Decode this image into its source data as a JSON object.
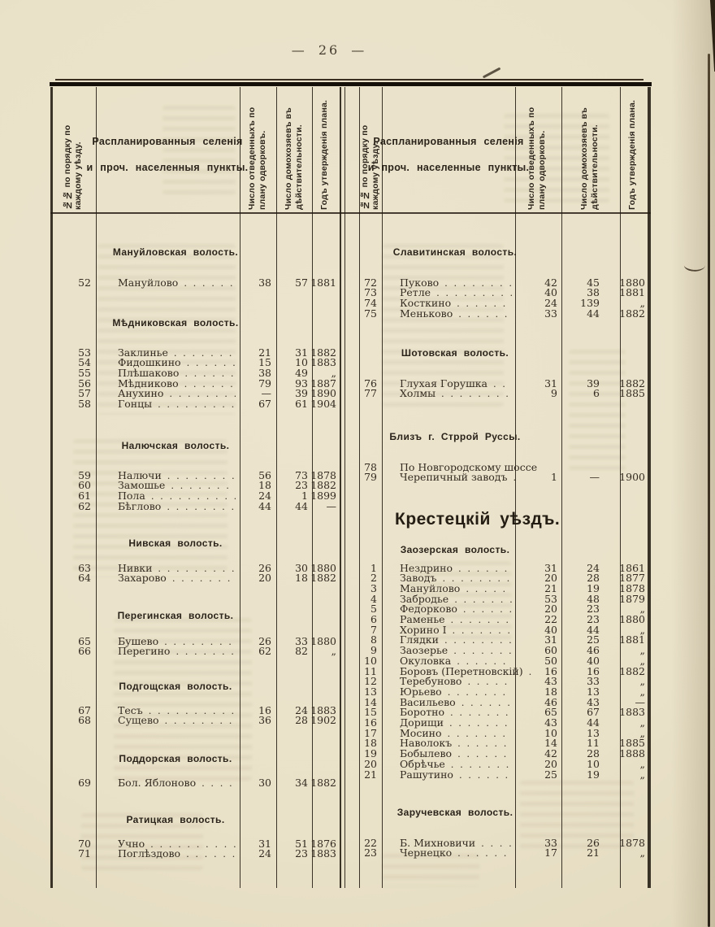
{
  "page": {
    "number_display": "— 26 —"
  },
  "headers": {
    "left": {
      "num": "№№ по порядку по\nкаждому уѣзду.",
      "planned": "Распланированныя селенія\nи проч. населенныя пункты.",
      "plots": "Число отведенныхъ по\nплану одворковъ.",
      "households": "Число домохозяевъ въ\nдѣйствительности.",
      "year": "Годъ утвержденія плана."
    },
    "right": {
      "num": "№№ по порядку по\nкаждому уѣзду.",
      "planned": "Распланированныя селенія\nи проч. населенные пункты.",
      "plots": "Число отведенныхъ по\nплану одворковъ.",
      "households": "Число домохозяевъ въ\nдѣйствительности.",
      "year": "Годъ утвержденія плана."
    }
  },
  "left_table": {
    "sections": [
      {
        "title": "Мануйловская волость.",
        "rows": [
          {
            "num": "52",
            "name": "Мануйлово",
            "dots": true,
            "plots": "38",
            "households": "57",
            "year": "1881"
          }
        ]
      },
      {
        "title": "Мѣдниковская волость.",
        "rows": [
          {
            "num": "53",
            "name": "Заклинье",
            "dots": true,
            "plots": "21",
            "households": "31",
            "year": "1882"
          },
          {
            "num": "54",
            "name": "Фидошкино",
            "dots": true,
            "plots": "15",
            "households": "10",
            "year": "1883"
          },
          {
            "num": "55",
            "name": "Плѣшаково",
            "dots": true,
            "plots": "38",
            "households": "49",
            "year": "„"
          },
          {
            "num": "56",
            "name": "Мѣдниково",
            "dots": true,
            "plots": "79",
            "households": "93",
            "year": "1887"
          },
          {
            "num": "57",
            "name": "Анухино",
            "dots": true,
            "plots": "—",
            "households": "39",
            "year": "1890"
          },
          {
            "num": "58",
            "name": "Гонцы",
            "dots": true,
            "plots": "67",
            "households": "61",
            "year": "1904"
          }
        ]
      },
      {
        "title": "Налючская волость.",
        "rows": [
          {
            "num": "59",
            "name": "Налючи",
            "dots": true,
            "plots": "56",
            "households": "73",
            "year": "1878"
          },
          {
            "num": "60",
            "name": "Замошье",
            "dots": true,
            "plots": "18",
            "households": "23",
            "year": "1882"
          },
          {
            "num": "61",
            "name": "Пола",
            "dots": true,
            "plots": "24",
            "households": "1",
            "year": "1899"
          },
          {
            "num": "62",
            "name": "Бѣглово",
            "dots": true,
            "plots": "44",
            "households": "44",
            "year": "—"
          }
        ]
      },
      {
        "title": "Нивская волость.",
        "rows": [
          {
            "num": "63",
            "name": "Нивки",
            "dots": true,
            "plots": "26",
            "households": "30",
            "year": "1880"
          },
          {
            "num": "64",
            "name": "Захарово",
            "dots": true,
            "plots": "20",
            "households": "18",
            "year": "1882"
          }
        ]
      },
      {
        "title": "Перегинская волость.",
        "rows": [
          {
            "num": "65",
            "name": "Бушево",
            "dots": true,
            "plots": "26",
            "households": "33",
            "year": "1880"
          },
          {
            "num": "66",
            "name": "Перегино",
            "dots": true,
            "plots": "62",
            "households": "82",
            "year": "„"
          }
        ]
      },
      {
        "title": "Подгощская волость.",
        "rows": [
          {
            "num": "67",
            "name": "Тесъ",
            "dots": true,
            "plots": "16",
            "households": "24",
            "year": "1883"
          },
          {
            "num": "68",
            "name": "Сущево",
            "dots": true,
            "plots": "36",
            "households": "28",
            "year": "1902"
          }
        ]
      },
      {
        "title": "Поддорская волость.",
        "rows": [
          {
            "num": "69",
            "name": "Бол. Яблоново",
            "dots": true,
            "plots": "30",
            "households": "34",
            "year": "1882"
          }
        ]
      },
      {
        "title": "Ратицкая волость.",
        "rows": [
          {
            "num": "70",
            "name": "Учно",
            "dots": true,
            "plots": "31",
            "households": "51",
            "year": "1876"
          },
          {
            "num": "71",
            "name": "Поглѣздово",
            "dots": true,
            "plots": "24",
            "households": "23",
            "year": "1883"
          }
        ]
      }
    ]
  },
  "right_table": {
    "uezd_header": "Крестецкій уѣздъ.",
    "sections": [
      {
        "title": "Славитинская волость.",
        "rows": [
          {
            "num": "72",
            "name": "Пуково",
            "dots": true,
            "plots": "42",
            "households": "45",
            "year": "1880"
          },
          {
            "num": "73",
            "name": "Ретле",
            "dots": true,
            "plots": "40",
            "households": "38",
            "year": "1881"
          },
          {
            "num": "74",
            "name": "Косткино",
            "dots": true,
            "plots": "24",
            "households": "139",
            "year": "„"
          },
          {
            "num": "75",
            "name": "Меньково",
            "dots": true,
            "plots": "33",
            "households": "44",
            "year": "1882"
          }
        ]
      },
      {
        "title": "Шотовская волость.",
        "rows": [
          {
            "num": "76",
            "name": "Глухая Горушка",
            "dots": true,
            "plots": "31",
            "households": "39",
            "year": "1882"
          },
          {
            "num": "77",
            "name": "Холмы",
            "dots": true,
            "plots": "9",
            "households": "6",
            "year": "1885"
          }
        ]
      },
      {
        "title": "Близъ г. Стррой Руссы.",
        "rows": [
          {
            "num": "78",
            "name": "По Новгородскому шоссе",
            "dots": false,
            "plots": "",
            "households": "",
            "year": ""
          },
          {
            "num": "79",
            "name": "Черепичный заводъ",
            "dots": true,
            "plots": "1",
            "households": "—",
            "year": "1900"
          }
        ]
      },
      {
        "title": "Заозерская волость.",
        "rows": [
          {
            "num": "1",
            "name": "Нездрино",
            "dots": true,
            "plots": "31",
            "households": "24",
            "year": "1861"
          },
          {
            "num": "2",
            "name": "Заводъ",
            "dots": true,
            "plots": "20",
            "households": "28",
            "year": "1877"
          },
          {
            "num": "3",
            "name": "Мануйлово",
            "dots": true,
            "plots": "21",
            "households": "19",
            "year": "1878"
          },
          {
            "num": "4",
            "name": "Забродье",
            "dots": true,
            "plots": "53",
            "households": "48",
            "year": "1879"
          },
          {
            "num": "5",
            "name": "Федорково",
            "dots": true,
            "plots": "20",
            "households": "23",
            "year": "„"
          },
          {
            "num": "6",
            "name": "Раменье",
            "dots": true,
            "plots": "22",
            "households": "23",
            "year": "1880"
          },
          {
            "num": "7",
            "name": "Хорино I",
            "dots": true,
            "plots": "40",
            "households": "44",
            "year": "„"
          },
          {
            "num": "8",
            "name": "Глядки",
            "dots": true,
            "plots": "31",
            "households": "25",
            "year": "1881"
          },
          {
            "num": "9",
            "name": "Заозерье",
            "dots": true,
            "plots": "60",
            "households": "46",
            "year": "„"
          },
          {
            "num": "10",
            "name": "Окуловка",
            "dots": true,
            "plots": "50",
            "households": "40",
            "year": "„"
          },
          {
            "num": "11",
            "name": "Боровъ (Перетновскій)",
            "dots": true,
            "plots": "16",
            "households": "16",
            "year": "1882"
          },
          {
            "num": "12",
            "name": "Теребуново",
            "dots": true,
            "plots": "43",
            "households": "33",
            "year": "„"
          },
          {
            "num": "13",
            "name": "Юрьево",
            "dots": true,
            "plots": "18",
            "households": "13",
            "year": "„"
          },
          {
            "num": "14",
            "name": "Васильево",
            "dots": true,
            "plots": "46",
            "households": "43",
            "year": "—"
          },
          {
            "num": "15",
            "name": "Боротно",
            "dots": true,
            "plots": "65",
            "households": "67",
            "year": "1883"
          },
          {
            "num": "16",
            "name": "Дорищи",
            "dots": true,
            "plots": "43",
            "households": "44",
            "year": "„"
          },
          {
            "num": "17",
            "name": "Мосино",
            "dots": true,
            "plots": "10",
            "households": "13",
            "year": "„"
          },
          {
            "num": "18",
            "name": "Наволокъ",
            "dots": true,
            "plots": "14",
            "households": "11",
            "year": "1885"
          },
          {
            "num": "19",
            "name": "Бобылево",
            "dots": true,
            "plots": "42",
            "households": "28",
            "year": "1888"
          },
          {
            "num": "20",
            "name": "Обрѣчье",
            "dots": true,
            "plots": "20",
            "households": "10",
            "year": "„"
          },
          {
            "num": "21",
            "name": "Рашутино",
            "dots": true,
            "plots": "25",
            "households": "19",
            "year": "„"
          }
        ]
      },
      {
        "title": "Заручевская волость.",
        "rows": [
          {
            "num": "22",
            "name": "Б. Михновичи",
            "dots": true,
            "plots": "33",
            "households": "26",
            "year": "1878"
          },
          {
            "num": "23",
            "name": "Чернецко",
            "dots": true,
            "plots": "17",
            "households": "21",
            "year": "„"
          }
        ]
      }
    ]
  },
  "meta": {
    "leader_dots": ". . . . . . . . . . . . . . . . . . . . . . . . . . . . . . . . . . . ."
  }
}
